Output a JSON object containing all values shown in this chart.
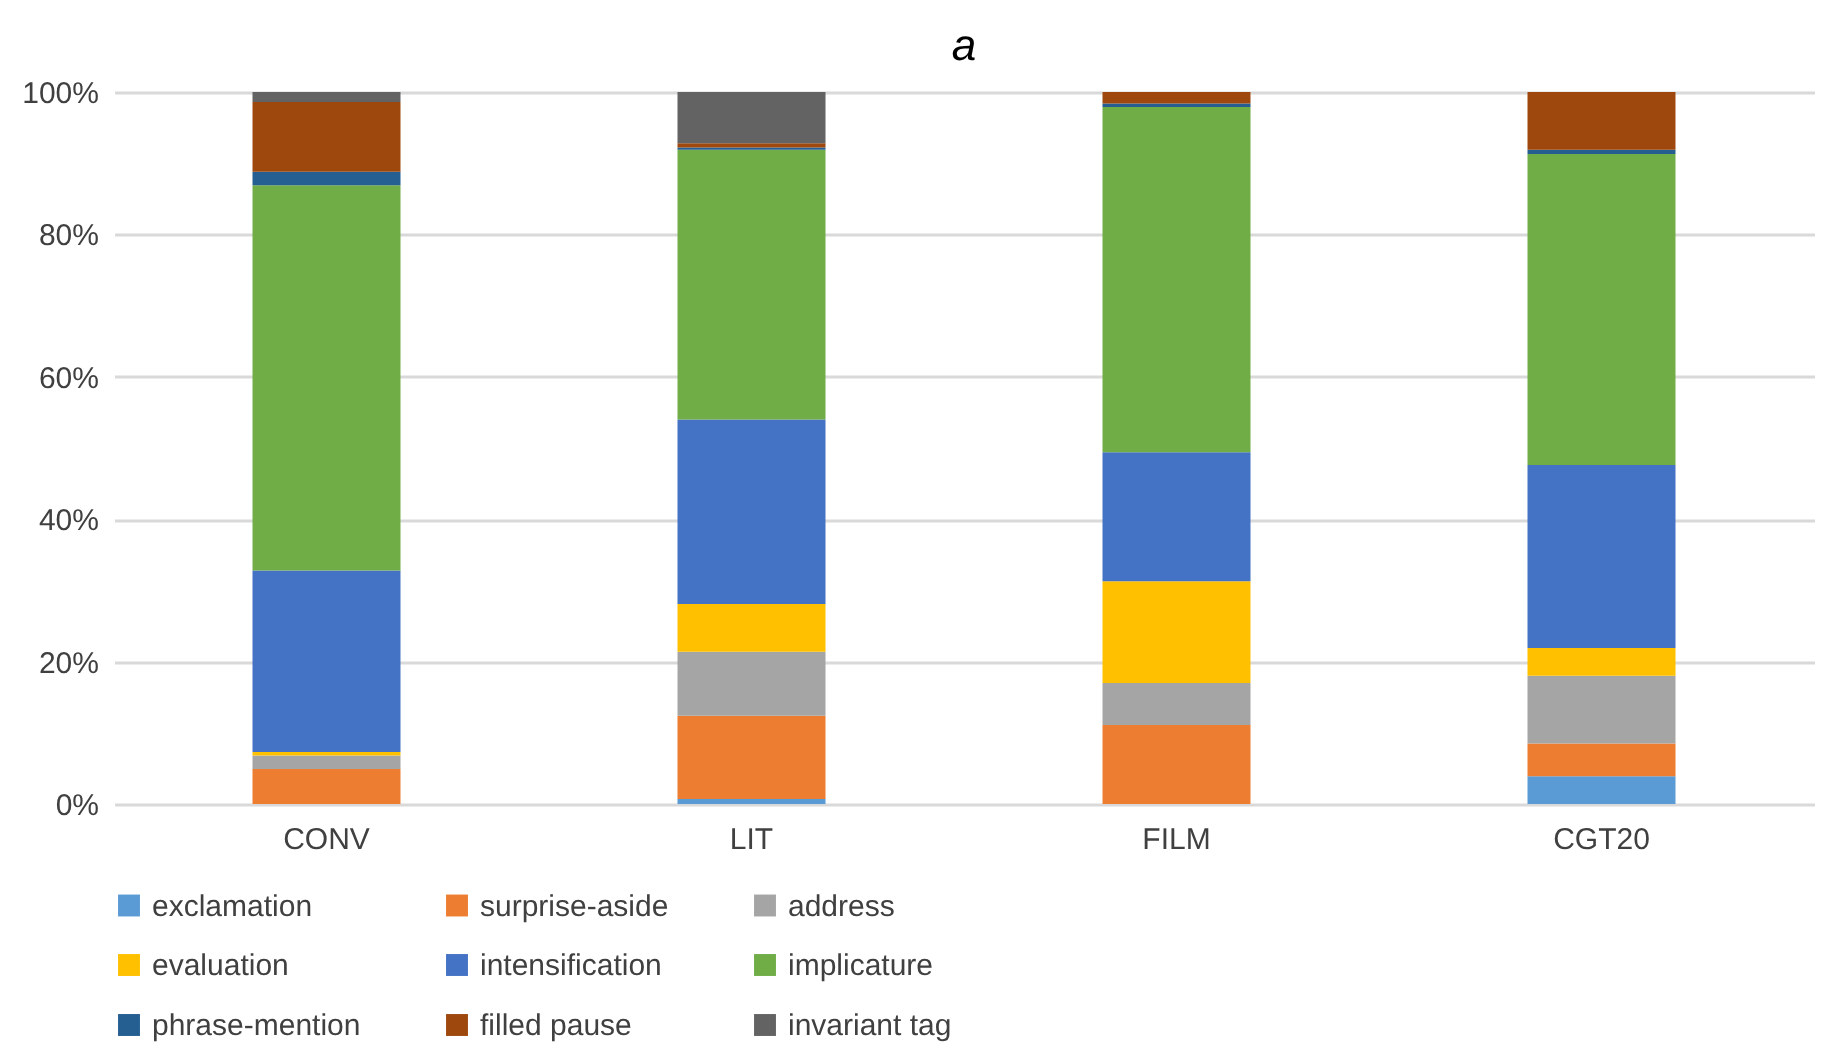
{
  "chart_data": {
    "type": "bar",
    "stacked": true,
    "title": "a",
    "categories": [
      "CONV",
      "LIT",
      "FILM",
      "CGT20"
    ],
    "ylim": [
      0,
      100
    ],
    "yticks": [
      {
        "value": 0,
        "label": "0%"
      },
      {
        "value": 20,
        "label": "20%"
      },
      {
        "value": 40,
        "label": "40%"
      },
      {
        "value": 60,
        "label": "60%"
      },
      {
        "value": 80,
        "label": "80%"
      },
      {
        "value": 100,
        "label": "100%"
      }
    ],
    "grid": "y",
    "legend": "bottom",
    "series": [
      {
        "name": "exclamation",
        "color": "#5b9bd5",
        "values": [
          0,
          0.7,
          0,
          3.9
        ]
      },
      {
        "name": "surprise-aside",
        "color": "#ed7d31",
        "values": [
          4.9,
          11.7,
          11.1,
          4.6
        ]
      },
      {
        "name": "address",
        "color": "#a5a5a5",
        "values": [
          1.9,
          9.0,
          5.9,
          9.5
        ]
      },
      {
        "name": "evaluation",
        "color": "#ffc000",
        "values": [
          0.5,
          6.7,
          14.3,
          3.9
        ]
      },
      {
        "name": "intensification",
        "color": "#4472c4",
        "values": [
          25.5,
          25.9,
          18.1,
          25.7
        ]
      },
      {
        "name": "implicature",
        "color": "#70ad47",
        "values": [
          54.1,
          37.9,
          48.5,
          43.7
        ]
      },
      {
        "name": "phrase-mention",
        "color": "#255e91",
        "values": [
          1.9,
          0.3,
          0.5,
          0.6
        ]
      },
      {
        "name": "filled pause",
        "color": "#9e480e",
        "values": [
          9.8,
          0.6,
          1.6,
          8.1
        ]
      },
      {
        "name": "invariant tag",
        "color": "#636363",
        "values": [
          1.4,
          7.2,
          0,
          0
        ]
      }
    ]
  }
}
